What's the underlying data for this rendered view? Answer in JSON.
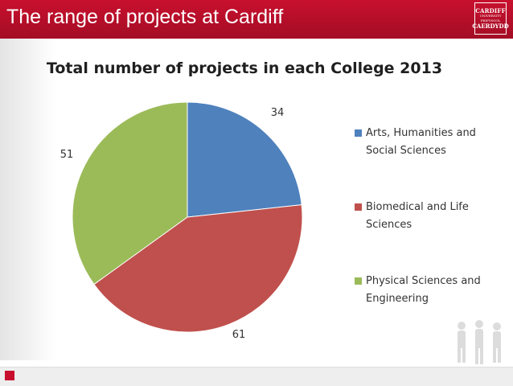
{
  "slide": {
    "title": "The range of projects at Cardiff",
    "logo": [
      "CARDIFF",
      "UNIVERSITY",
      "PRIFYSGOL",
      "CAERDYDD"
    ]
  },
  "chart_data": {
    "type": "pie",
    "title": "Total number of projects in each College 2013",
    "legend_position": "right",
    "categories": [
      "Arts, Humanities and Social Sciences",
      "Biomedical and Life Sciences",
      "Physical Sciences and Engineering"
    ],
    "values": [
      34,
      61,
      51
    ],
    "data_labels": [
      "34",
      "61",
      "51"
    ],
    "colors": [
      "#4f81bd",
      "#c0504d",
      "#9bbb59"
    ]
  }
}
